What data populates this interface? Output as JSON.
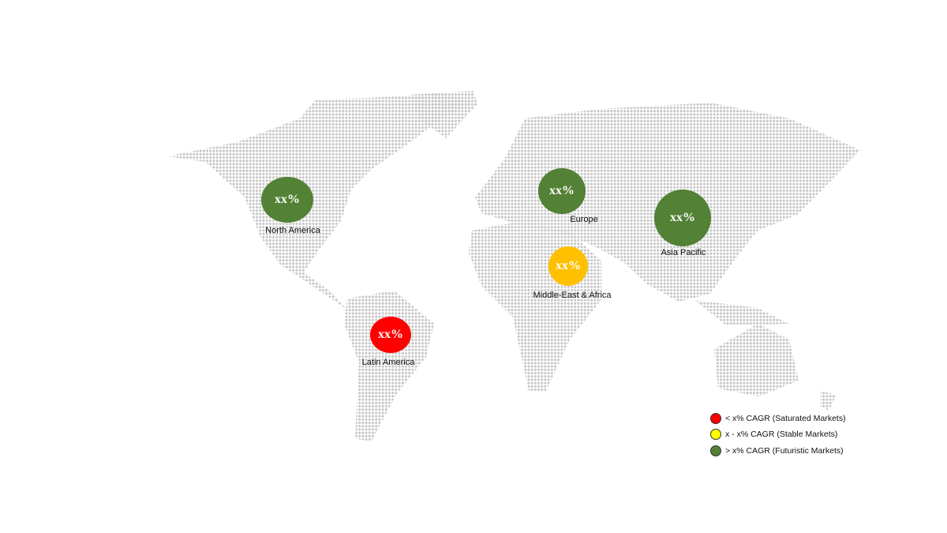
{
  "colors": {
    "green": "#538135",
    "yellow": "#ffc000",
    "red": "#ff0000",
    "map_dots": "#c4c4c4"
  },
  "regions": [
    {
      "name": "North America",
      "value": "xx%",
      "color": "#538135"
    },
    {
      "name": "Europe",
      "value": "xx%",
      "color": "#538135"
    },
    {
      "name": "Asia Pacific",
      "value": "xx%",
      "color": "#538135"
    },
    {
      "name": "Middle-East & Africa",
      "value": "xx%",
      "color": "#ffc000"
    },
    {
      "name": "Latin America",
      "value": "xx%",
      "color": "#ff0000"
    }
  ],
  "legend": [
    {
      "label": "< x% CAGR (Saturated Markets)",
      "color": "#ff0000"
    },
    {
      "label": "x - x% CAGR (Stable Markets)",
      "color": "#ffff00"
    },
    {
      "label": "> x% CAGR (Futuristic Markets)",
      "color": "#538135"
    }
  ]
}
